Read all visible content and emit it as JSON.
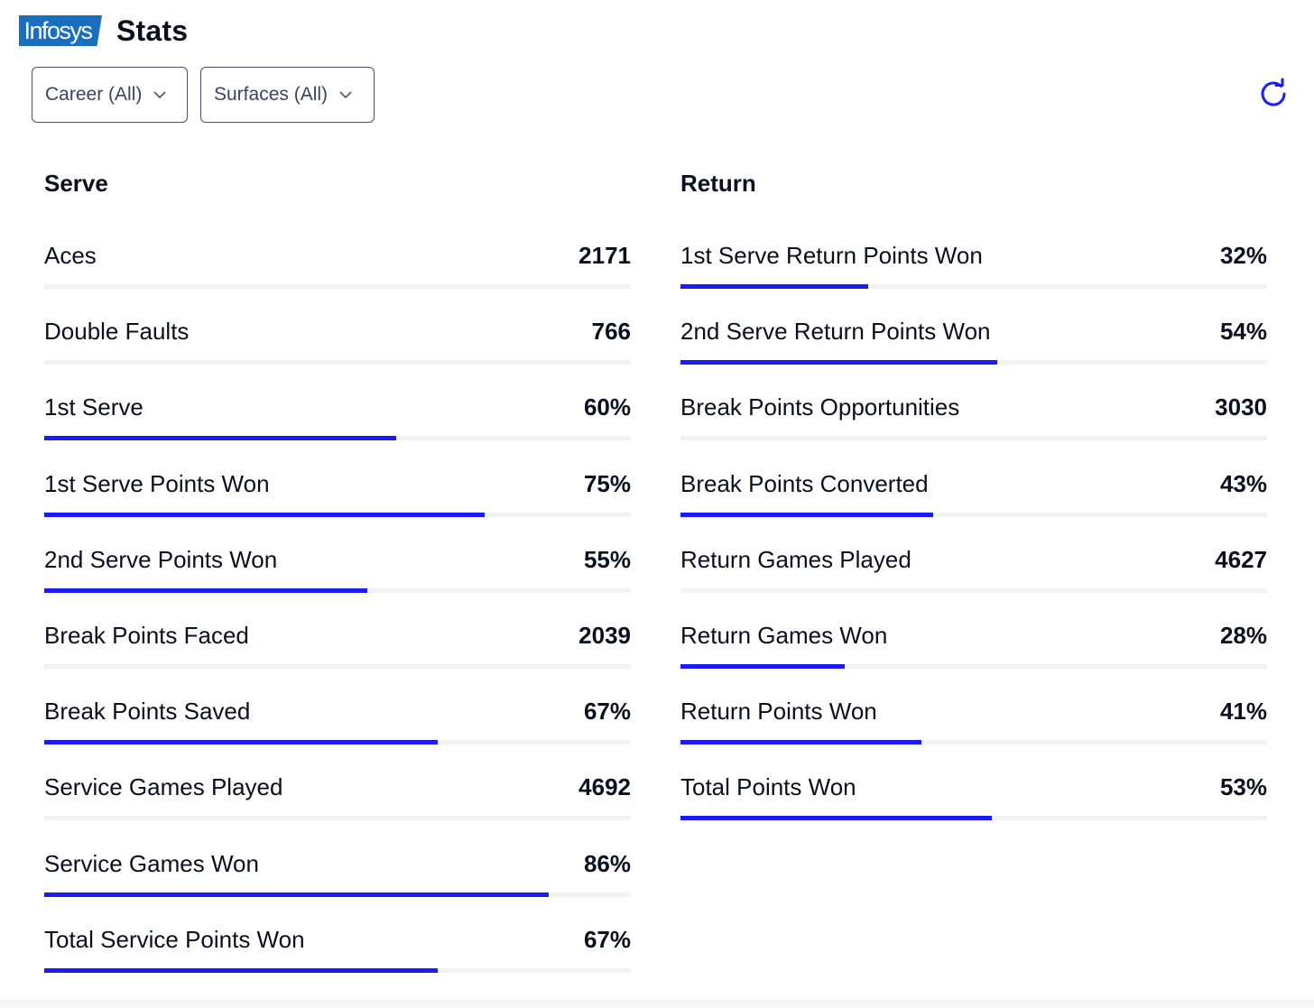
{
  "header": {
    "logo_text": "Infosys",
    "title": "Stats"
  },
  "filters": {
    "career": "Career (All)",
    "surfaces": "Surfaces (All)"
  },
  "colors": {
    "accent": "#1b1bf5",
    "logo": "#1a6ec0",
    "track": "#f2f2f4"
  },
  "serve": {
    "heading": "Serve",
    "rows": [
      {
        "label": "Aces",
        "value": "2171",
        "bar": null
      },
      {
        "label": "Double Faults",
        "value": "766",
        "bar": null
      },
      {
        "label": "1st Serve",
        "value": "60%",
        "bar": 60
      },
      {
        "label": "1st Serve Points Won",
        "value": "75%",
        "bar": 75
      },
      {
        "label": "2nd Serve Points Won",
        "value": "55%",
        "bar": 55
      },
      {
        "label": "Break Points Faced",
        "value": "2039",
        "bar": null
      },
      {
        "label": "Break Points Saved",
        "value": "67%",
        "bar": 67
      },
      {
        "label": "Service Games Played",
        "value": "4692",
        "bar": null
      },
      {
        "label": "Service Games Won",
        "value": "86%",
        "bar": 86
      },
      {
        "label": "Total Service Points Won",
        "value": "67%",
        "bar": 67
      }
    ]
  },
  "return": {
    "heading": "Return",
    "rows": [
      {
        "label": "1st Serve Return Points Won",
        "value": "32%",
        "bar": 32
      },
      {
        "label": "2nd Serve Return Points Won",
        "value": "54%",
        "bar": 54
      },
      {
        "label": "Break Points Opportunities",
        "value": "3030",
        "bar": null
      },
      {
        "label": "Break Points Converted",
        "value": "43%",
        "bar": 43
      },
      {
        "label": "Return Games Played",
        "value": "4627",
        "bar": null
      },
      {
        "label": "Return Games Won",
        "value": "28%",
        "bar": 28
      },
      {
        "label": "Return Points Won",
        "value": "41%",
        "bar": 41
      },
      {
        "label": "Total Points Won",
        "value": "53%",
        "bar": 53
      }
    ]
  }
}
